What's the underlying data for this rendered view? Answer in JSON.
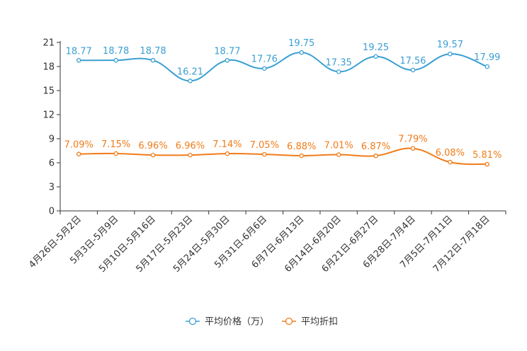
{
  "chart_data": {
    "type": "line",
    "title": "",
    "xlabel": "",
    "ylabel": "",
    "ylim": [
      0,
      21
    ],
    "yticks": [
      0,
      3,
      6,
      9,
      12,
      15,
      18,
      21
    ],
    "categories": [
      "4月26日-5月2日",
      "5月3日-5月9日",
      "5月10日-5月16日",
      "5月17日-5月23日",
      "5月24日-5月30日",
      "5月31日-6月6日",
      "6月7日-6月13日",
      "6月14日-6月20日",
      "6月21日-6月27日",
      "6月28日-7月4日",
      "7月5日-7月11日",
      "7月12日-7月18日"
    ],
    "series": [
      {
        "name": "平均价格（万）",
        "color": "#3a9fd3",
        "values": [
          18.77,
          18.78,
          18.78,
          16.21,
          18.77,
          17.76,
          19.75,
          17.35,
          19.25,
          17.56,
          19.57,
          17.99
        ],
        "labels": [
          "18.77",
          "18.78",
          "18.78",
          "16.21",
          "18.77",
          "17.76",
          "19.75",
          "17.35",
          "19.25",
          "17.56",
          "19.57",
          "17.99"
        ]
      },
      {
        "name": "平均折扣",
        "color": "#f07c1a",
        "values": [
          7.09,
          7.15,
          6.96,
          6.96,
          7.14,
          7.05,
          6.88,
          7.01,
          6.87,
          7.79,
          6.08,
          5.81
        ],
        "labels": [
          "7.09%",
          "7.15%",
          "6.96%",
          "6.96%",
          "7.14%",
          "7.05%",
          "6.88%",
          "7.01%",
          "6.87%",
          "7.79%",
          "6.08%",
          "5.81%"
        ]
      }
    ],
    "legend_position": "bottom-center"
  }
}
